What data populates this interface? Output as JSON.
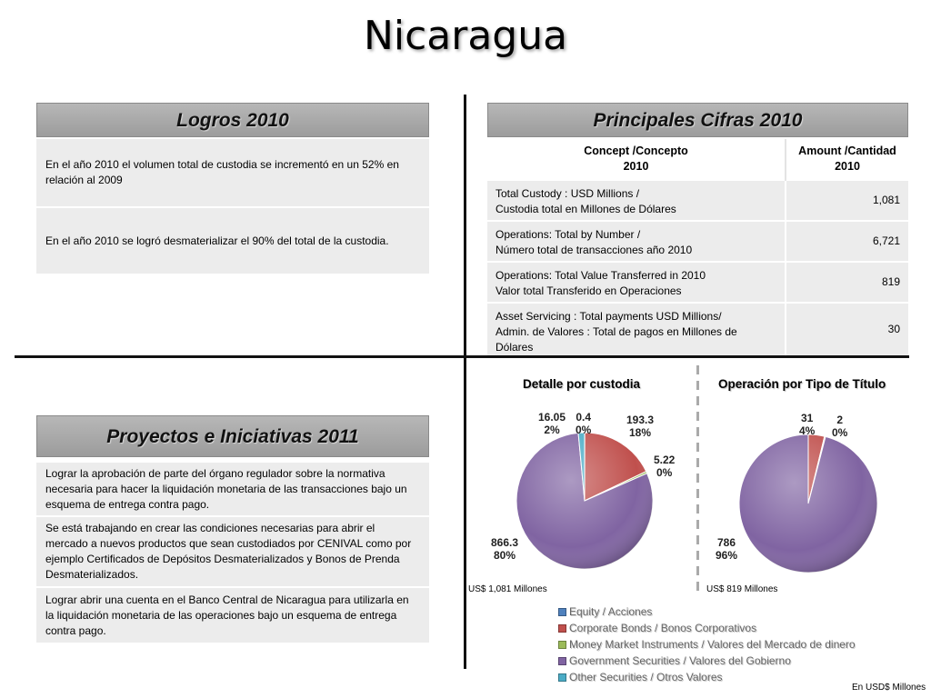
{
  "title": "Nicaragua",
  "logros": {
    "heading": "Logros 2010",
    "items": [
      "En el año 2010 el volumen total de custodia se incrementó en un 52% en relación al 2009",
      "En el año 2010 se logró desmaterializar el 90% del total de la custodia."
    ]
  },
  "cifras": {
    "heading": "Principales Cifras 2010",
    "col_concept": [
      "Concept /Concepto",
      "2010"
    ],
    "col_amount": [
      "Amount /Cantidad",
      "2010"
    ],
    "rows": [
      {
        "line1": "Total Custody : USD Millions  /",
        "line2": "Custodia total en Millones de Dólares",
        "amount": "1,081"
      },
      {
        "line1": "Operations:  Total by Number /",
        "line2": " Número total de transacciones año 2010",
        "amount": "6,721"
      },
      {
        "line1": "Operations:  Total Value Transferred in 2010",
        "line2": "Valor total Transferido en Operaciones",
        "amount": "819"
      },
      {
        "line1": "Asset Servicing :  Total payments USD Millions/",
        "line2": "Admin. de Valores :  Total de pagos en Millones de Dólares",
        "amount": "30"
      }
    ]
  },
  "proyectos": {
    "heading": "Proyectos e Iniciativas 2011",
    "items": [
      "Lograr la aprobación de parte del órgano regulador sobre la normativa necesaria para hacer la liquidación monetaria de las transacciones bajo un esquema de entrega contra pago.",
      "Se está trabajando en crear las condiciones necesarias para abrir el mercado a nuevos productos que sean custodiados por CENIVAL como por ejemplo Certificados de Depósitos Desmaterializados y Bonos de Prenda Desmaterializados.",
      "Lograr abrir una cuenta en el Banco Central de Nicaragua para utilizarla en la liquidación monetaria de las operaciones bajo un esquema de entrega contra pago."
    ]
  },
  "colors": {
    "equity": "#4f81bd",
    "corporate": "#c0504d",
    "money_market": "#9bbb59",
    "government": "#8064a2",
    "other": "#4bacc6"
  },
  "chart_data": [
    {
      "type": "pie",
      "title": "Detalle por custodia",
      "note": "US$ 1,081 Millones",
      "categories": [
        "Equity / Acciones",
        "Corporate Bonds / Bonos Corporativos",
        "Money Market Instruments  / Valores del Mercado de dinero",
        "Government Securities / Valores del Gobierno",
        "Other Securities / Otros Valores"
      ],
      "values": [
        0.4,
        193.3,
        5.22,
        866.3,
        16.05
      ],
      "value_labels": [
        "0.4",
        "193.3",
        "5.22",
        "866.3",
        "16.05"
      ],
      "percent_labels": [
        "0%",
        "18%",
        "0%",
        "80%",
        "2%"
      ]
    },
    {
      "type": "pie",
      "title": "Operación  por Tipo de Título",
      "note": "US$ 819 Millones",
      "categories": [
        "Corporate Bonds / Bonos Corporativos",
        "Money Market Instruments  / Valores del Mercado de dinero",
        "Government Securities / Valores del Gobierno"
      ],
      "values": [
        31,
        2,
        786
      ],
      "value_labels": [
        "31",
        "2",
        "786"
      ],
      "percent_labels": [
        "4%",
        "0%",
        "96%"
      ]
    }
  ],
  "legend": [
    {
      "label": "Equity / Acciones",
      "color": "#4f81bd"
    },
    {
      "label": "Corporate Bonds / Bonos Corporativos",
      "color": "#c0504d"
    },
    {
      "label": "Money Market Instruments  / Valores del Mercado de dinero",
      "color": "#9bbb59"
    },
    {
      "label": "Government Securities / Valores del Gobierno",
      "color": "#8064a2"
    },
    {
      "label": "Other Securities / Otros Valores",
      "color": "#4bacc6"
    }
  ],
  "footer_note": "En USD$ Millones"
}
